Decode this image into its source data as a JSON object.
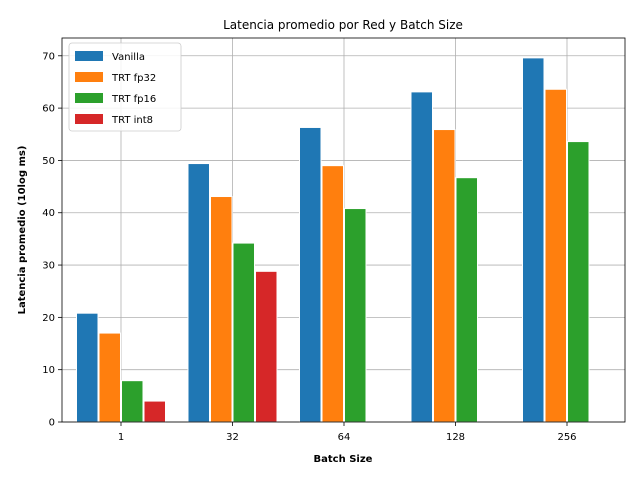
{
  "chart_data": {
    "type": "bar",
    "title": "Latencia promedio por Red y Batch Size",
    "xlabel": "Batch Size",
    "ylabel": "Latencia promedio (10log ms)",
    "categories": [
      "1",
      "32",
      "64",
      "128",
      "256"
    ],
    "series": [
      {
        "name": "Vanilla",
        "color": "#1f77b4",
        "values": [
          20.8,
          49.4,
          56.3,
          63.1,
          69.6
        ]
      },
      {
        "name": "TRT fp32",
        "color": "#ff7f0e",
        "values": [
          17.0,
          43.1,
          49.0,
          55.9,
          63.6
        ]
      },
      {
        "name": "TRT fp16",
        "color": "#2ca02c",
        "values": [
          7.9,
          34.2,
          40.8,
          46.7,
          53.6
        ]
      },
      {
        "name": "TRT int8",
        "color": "#d62728",
        "values": [
          4.0,
          28.8,
          null,
          null,
          null
        ]
      }
    ],
    "ylim": [
      0,
      73.4
    ],
    "yticks": [
      0,
      10,
      20,
      30,
      40,
      50,
      60,
      70
    ],
    "grid": true,
    "legend_position": "top-left"
  }
}
